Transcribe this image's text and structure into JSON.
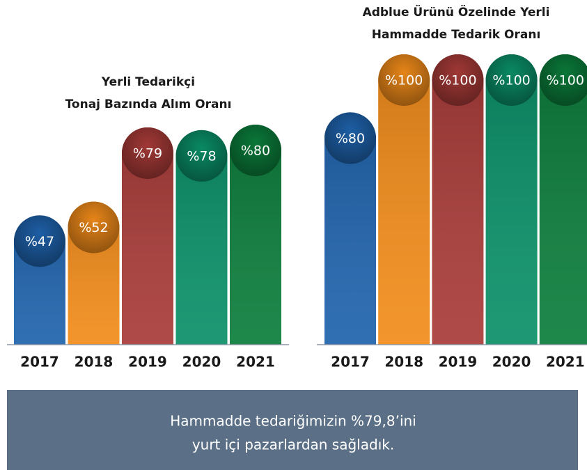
{
  "chart_data": [
    {
      "type": "bar",
      "title": [
        "Yerli Tedarikçi",
        "Tonaj Bazında Alım Oranı"
      ],
      "categories": [
        "2017",
        "2018",
        "2019",
        "2020",
        "2021"
      ],
      "values": [
        47,
        52,
        79,
        78,
        80
      ],
      "value_labels": [
        "%47",
        "%52",
        "%79",
        "%78",
        "%80"
      ],
      "colors": [
        "#1f63ad",
        "#f28c1a",
        "#a83b38",
        "#0a9068",
        "#0b7d3b"
      ]
    },
    {
      "type": "bar",
      "title": [
        "Adblue Ürünü Özelinde Yerli",
        "Hammadde Tedarik Oranı"
      ],
      "categories": [
        "2017",
        "2018",
        "2019",
        "2020",
        "2021"
      ],
      "values": [
        80,
        100,
        100,
        100,
        100
      ],
      "value_labels": [
        "%80",
        "%100",
        "%100",
        "%100",
        "%100"
      ],
      "colors": [
        "#1f63ad",
        "#f28c1a",
        "#a83b38",
        "#0a9068",
        "#0b7d3b"
      ]
    }
  ],
  "footer": [
    "Hammadde tedariğimizin %79,8’ini",
    "yurt içi pazarlardan sağladık."
  ]
}
